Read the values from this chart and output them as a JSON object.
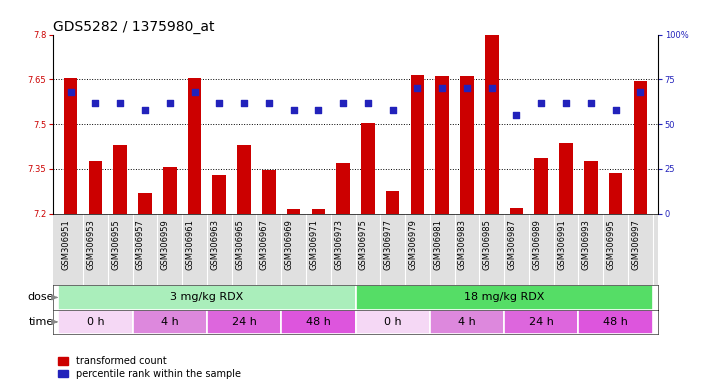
{
  "title": "GDS5282 / 1375980_at",
  "samples": [
    "GSM306951",
    "GSM306953",
    "GSM306955",
    "GSM306957",
    "GSM306959",
    "GSM306961",
    "GSM306963",
    "GSM306965",
    "GSM306967",
    "GSM306969",
    "GSM306971",
    "GSM306973",
    "GSM306975",
    "GSM306977",
    "GSM306979",
    "GSM306981",
    "GSM306983",
    "GSM306985",
    "GSM306987",
    "GSM306989",
    "GSM306991",
    "GSM306993",
    "GSM306995",
    "GSM306997"
  ],
  "transformed_count": [
    7.655,
    7.375,
    7.43,
    7.27,
    7.355,
    7.655,
    7.33,
    7.43,
    7.345,
    7.215,
    7.215,
    7.37,
    7.505,
    7.275,
    7.665,
    7.66,
    7.66,
    7.8,
    7.22,
    7.385,
    7.435,
    7.375,
    7.335,
    7.645
  ],
  "percentile_rank": [
    68,
    62,
    62,
    58,
    62,
    68,
    62,
    62,
    62,
    58,
    58,
    62,
    62,
    58,
    70,
    70,
    70,
    70,
    55,
    62,
    62,
    62,
    58,
    68
  ],
  "ylim_left": [
    7.2,
    7.8
  ],
  "ylim_right": [
    0,
    100
  ],
  "yticks_left": [
    7.2,
    7.35,
    7.5,
    7.65,
    7.8
  ],
  "yticks_right": [
    0,
    25,
    50,
    75,
    100
  ],
  "bar_color": "#cc0000",
  "dot_color": "#2222bb",
  "bar_bottom": 7.2,
  "hlines": [
    7.35,
    7.5,
    7.65
  ],
  "dose_groups": [
    {
      "label": "3 mg/kg RDX",
      "start": 0,
      "end": 12,
      "color": "#aaeebb"
    },
    {
      "label": "18 mg/kg RDX",
      "start": 12,
      "end": 24,
      "color": "#55dd66"
    }
  ],
  "time_groups": [
    {
      "label": "0 h",
      "start": 0,
      "end": 3,
      "color": "#f5d8f5"
    },
    {
      "label": "4 h",
      "start": 3,
      "end": 6,
      "color": "#dd88dd"
    },
    {
      "label": "24 h",
      "start": 6,
      "end": 9,
      "color": "#dd66dd"
    },
    {
      "label": "48 h",
      "start": 9,
      "end": 12,
      "color": "#dd55dd"
    },
    {
      "label": "0 h",
      "start": 12,
      "end": 15,
      "color": "#f5d8f5"
    },
    {
      "label": "4 h",
      "start": 15,
      "end": 18,
      "color": "#dd88dd"
    },
    {
      "label": "24 h",
      "start": 18,
      "end": 21,
      "color": "#dd66dd"
    },
    {
      "label": "48 h",
      "start": 21,
      "end": 24,
      "color": "#dd55dd"
    }
  ],
  "legend_items": [
    {
      "label": "transformed count",
      "color": "#cc0000"
    },
    {
      "label": "percentile rank within the sample",
      "color": "#2222bb"
    }
  ],
  "bg_color": "#ffffff",
  "sample_bg": "#e0e0e0",
  "title_fontsize": 10,
  "tick_fontsize": 6,
  "bar_label_fontsize": 7.5,
  "dose_time_fontsize": 8,
  "legend_fontsize": 7
}
